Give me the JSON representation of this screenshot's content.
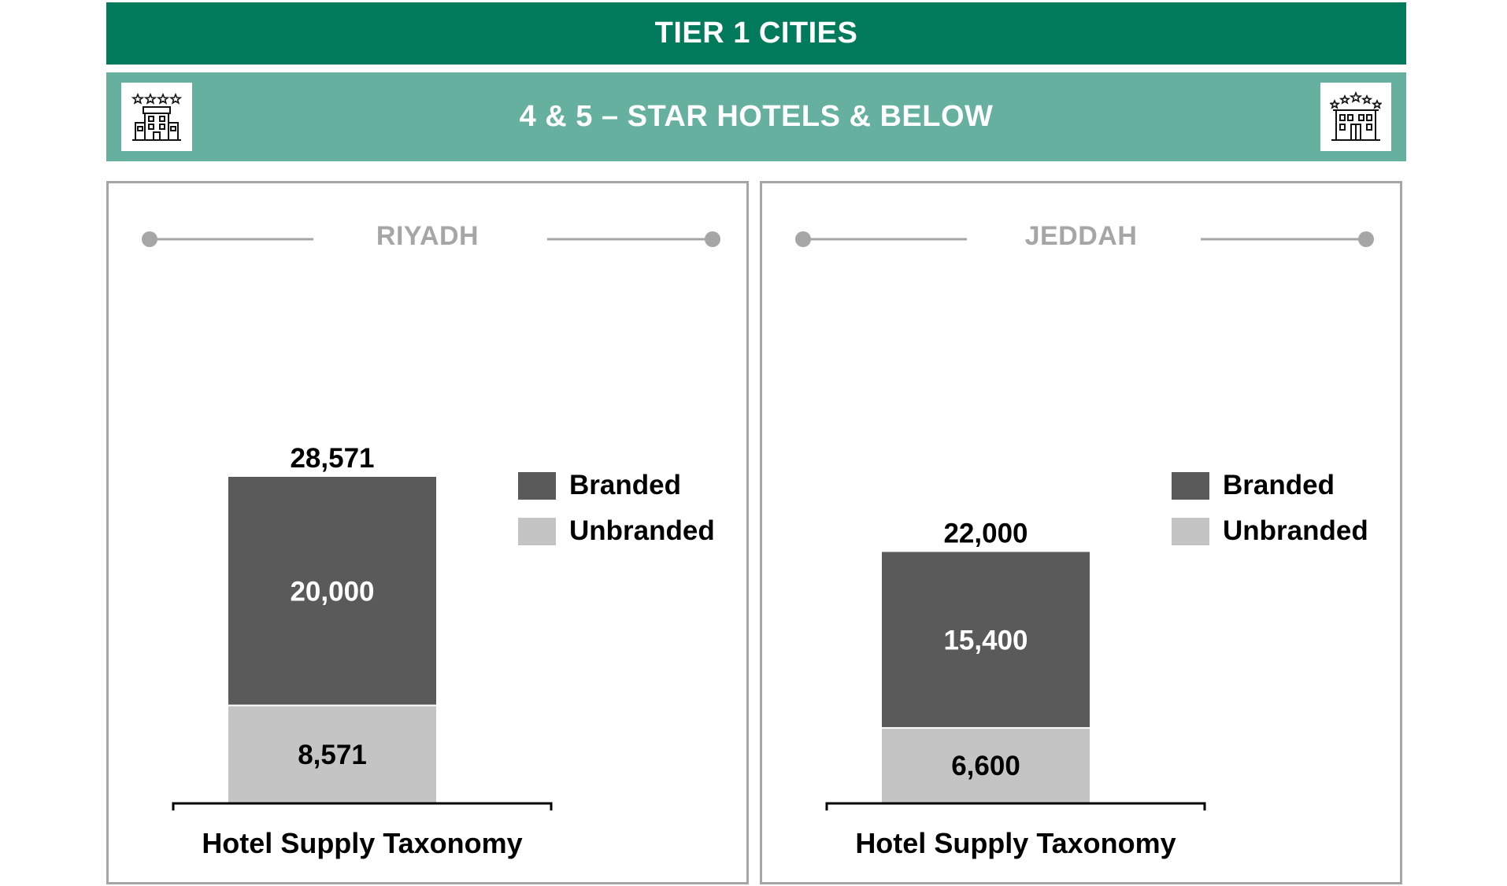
{
  "header": {
    "title": "TIER 1 CITIES",
    "subtitle": "4 & 5 – STAR HOTELS & BELOW",
    "left_icon": "hotel-four-star-icon",
    "right_icon": "hotel-five-star-icon"
  },
  "colors": {
    "header_dark": "#027a5c",
    "header_light": "#66b0a0",
    "branded": "#5a5a5a",
    "unbranded": "#c4c4c4",
    "panel_border": "#a6a6a6",
    "city_title": "#a6a6a6"
  },
  "chart_data": [
    {
      "type": "bar",
      "stacked": true,
      "title": "RIYADH",
      "categories": [
        "Hotel Supply Taxonomy"
      ],
      "xlabel": "Hotel Supply Taxonomy",
      "ylabel": "",
      "total": "28,571",
      "legend_position": "right",
      "series": [
        {
          "name": "Unbranded",
          "values": [
            8571
          ],
          "label": "8,571"
        },
        {
          "name": "Branded",
          "values": [
            20000
          ],
          "label": "20,000"
        }
      ]
    },
    {
      "type": "bar",
      "stacked": true,
      "title": "JEDDAH",
      "categories": [
        "Hotel Supply Taxonomy"
      ],
      "xlabel": "Hotel Supply Taxonomy",
      "ylabel": "",
      "total": "22,000",
      "legend_position": "right",
      "series": [
        {
          "name": "Unbranded",
          "values": [
            6600
          ],
          "label": "6,600"
        },
        {
          "name": "Branded",
          "values": [
            15400
          ],
          "label": "15,400"
        }
      ]
    }
  ]
}
